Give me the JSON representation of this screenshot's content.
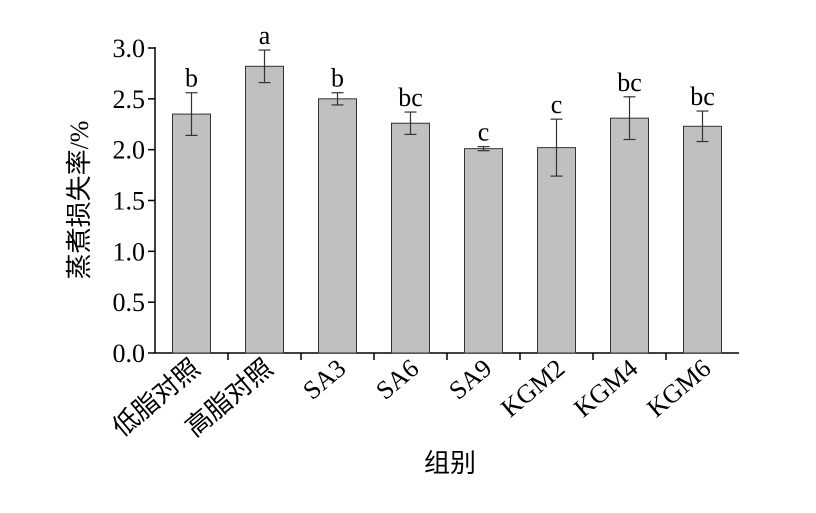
{
  "chart_data": {
    "type": "bar",
    "categories": [
      "低脂对照",
      "高脂对照",
      "SA3",
      "SA6",
      "SA9",
      "KGM2",
      "KGM4",
      "KGM6"
    ],
    "values": [
      2.35,
      2.82,
      2.5,
      2.26,
      2.01,
      2.02,
      2.31,
      2.23
    ],
    "errors": [
      0.21,
      0.16,
      0.06,
      0.11,
      0.02,
      0.28,
      0.21,
      0.15
    ],
    "letters": [
      "b",
      "a",
      "b",
      "bc",
      "c",
      "c",
      "bc",
      "bc"
    ],
    "color": "#c0c0c0",
    "xlabel": "组别",
    "ylabel": "蒸煮损失率/%",
    "ylim": [
      0,
      3
    ],
    "yticks": [
      {
        "value": 0,
        "label": "0.0"
      },
      0.5,
      {
        "value": 1,
        "label": "1.0"
      },
      1.5,
      {
        "value": 2,
        "label": "2.0"
      },
      2.5,
      {
        "value": 3,
        "label": "3.0"
      }
    ]
  }
}
